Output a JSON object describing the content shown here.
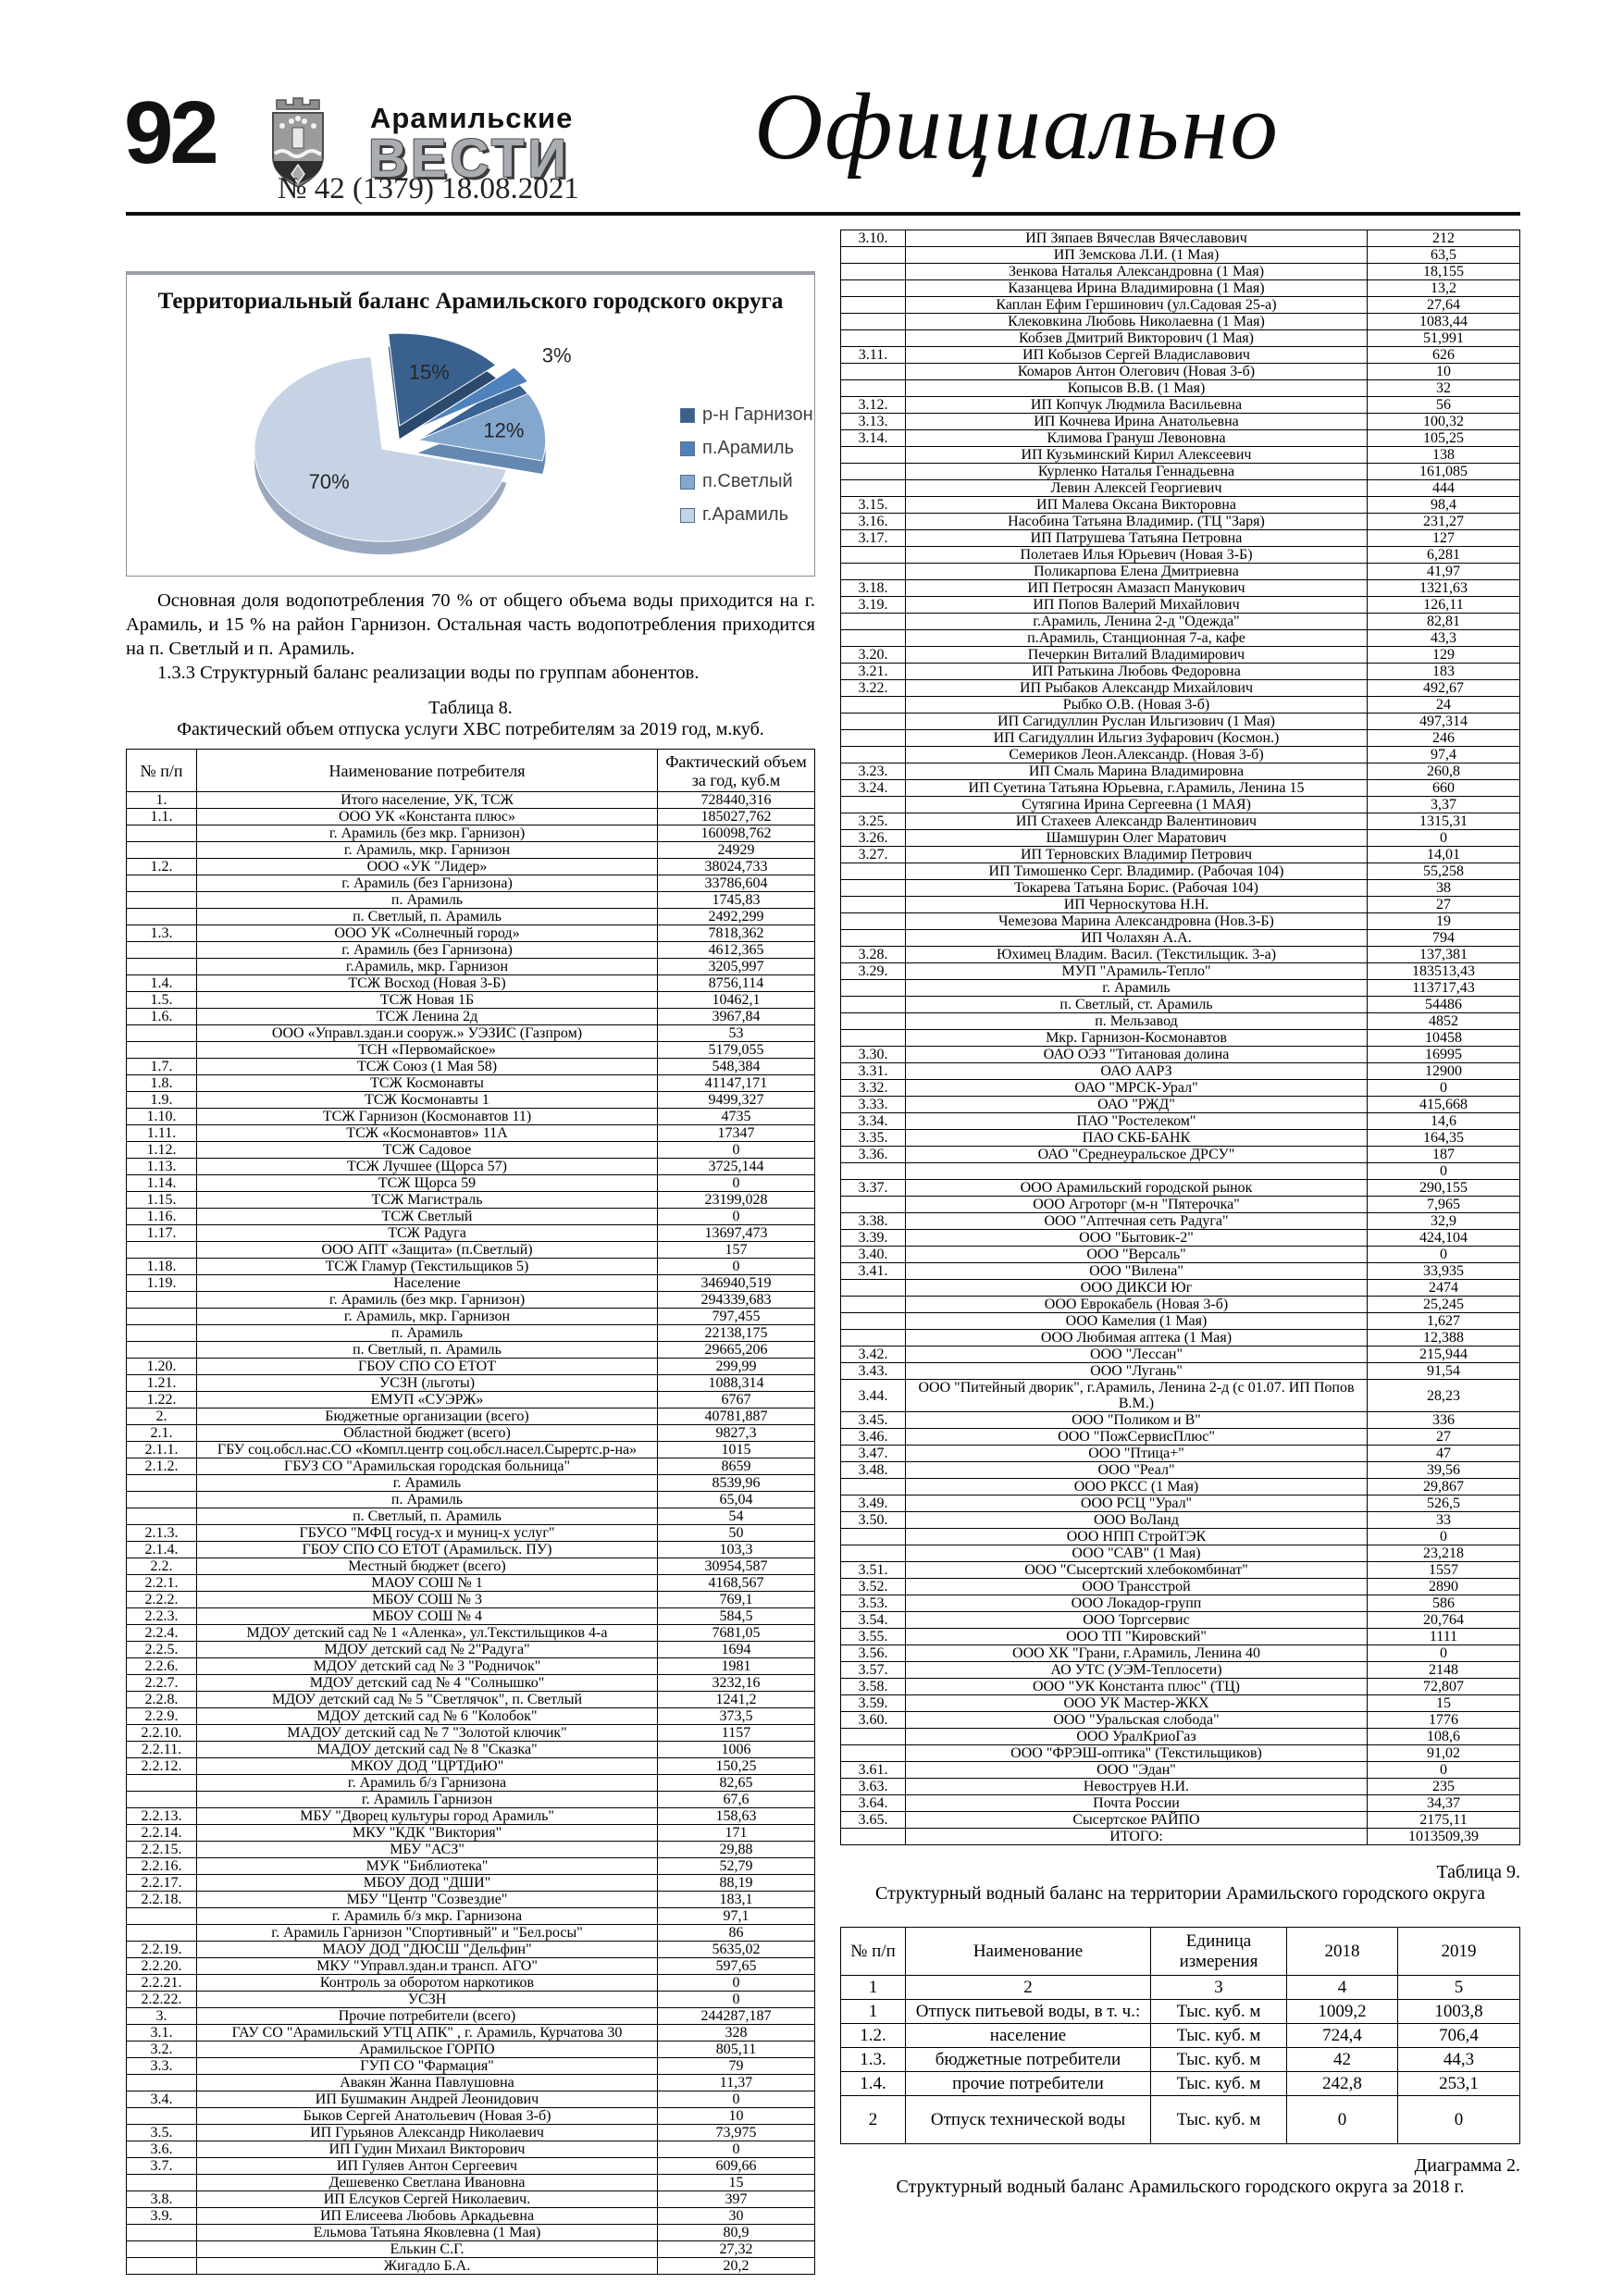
{
  "header": {
    "page_number": "92",
    "masthead_top": "Арамильские",
    "masthead_main": "ВЕСТИ",
    "issue_line": "№ 42 (1379) 18.08.2021",
    "section_title": "Официально"
  },
  "chart_data": {
    "type": "pie",
    "title": "Территориальный баланс Арамильского городского округа",
    "categories": [
      "р-н Гарнизон",
      "п.Арамиль",
      "п.Светлый",
      "г.Арамиль"
    ],
    "values": [
      15,
      3,
      12,
      70
    ],
    "unit": "%",
    "labels_pct": [
      "15%",
      "3%",
      "12%",
      "70%"
    ],
    "colors": [
      "#3a618e",
      "#4f81bd",
      "#84a7ce",
      "#c6d3e5"
    ],
    "side_colors": [
      "#2b4a6e",
      "#3a6292",
      "#6488b2",
      "#9aa9bf"
    ],
    "start_angle": -95,
    "explode": [
      26,
      36,
      30,
      12
    ],
    "label_radius": [
      0.62,
      1.34,
      0.68,
      0.55
    ],
    "legend_position": "right",
    "grid": false
  },
  "paragraph": {
    "p1": "Основная доля водопотребления 70 % от общего объема воды приходится на г. Арамиль, и 15 % на район Гарнизон. Остальная часть водопотребления приходится на п. Светлый и п. Арамиль.",
    "p2": "1.3.3 Структурный баланс реализации воды по группам абонентов."
  },
  "table8": {
    "caption_num": "Таблица 8.",
    "caption": "Фактический объем отпуска услуги ХВС потребителям за  2019 год, м.куб.",
    "columns": [
      "№ п/п",
      "Наименование потребителя",
      "Фактический объем за год, куб.м"
    ],
    "rows_left": [
      [
        "1.",
        "Итого население, УК, ТСЖ",
        "728440,316"
      ],
      [
        "1.1.",
        "ООО УК «Константа плюс»",
        "185027,762"
      ],
      [
        "",
        "г. Арамиль (без мкр. Гарнизон)",
        "160098,762"
      ],
      [
        "",
        "г. Арамиль, мкр. Гарнизон",
        "24929"
      ],
      [
        "1.2.",
        "ООО «УК \"Лидер»",
        "38024,733"
      ],
      [
        "",
        "г. Арамиль (без Гарнизона)",
        "33786,604"
      ],
      [
        "",
        "п. Арамиль",
        "1745,83"
      ],
      [
        "",
        "п. Светлый, п. Арамиль",
        "2492,299"
      ],
      [
        "1.3.",
        "ООО УК «Солнечный город»",
        "7818,362"
      ],
      [
        "",
        "г. Арамиль  (без Гарнизона)",
        "4612,365"
      ],
      [
        "",
        "г.Арамиль,  мкр. Гарнизон",
        "3205,997"
      ],
      [
        "1.4.",
        "ТСЖ Восход  (Новая 3-Б)",
        "8756,114"
      ],
      [
        "1.5.",
        "ТСЖ Новая 1Б",
        "10462,1"
      ],
      [
        "1.6.",
        "ТСЖ Ленина 2д",
        "3967,84"
      ],
      [
        "",
        "ООО «Управл.здан.и сооруж.» УЭЗИС (Газпром)",
        "53"
      ],
      [
        "",
        "ТСН «Первомайское»",
        "5179,055"
      ],
      [
        "1.7.",
        "ТСЖ Союз (1 Мая 58)",
        "548,384"
      ],
      [
        "1.8.",
        "ТСЖ Космонавты",
        "41147,171"
      ],
      [
        "1.9.",
        "ТСЖ Космонавты 1",
        "9499,327"
      ],
      [
        "1.10.",
        "ТСЖ Гарнизон (Космонавтов 11)",
        "4735"
      ],
      [
        "1.11.",
        "ТСЖ «Космонавтов» 11А",
        "17347"
      ],
      [
        "1.12.",
        "ТСЖ Садовое",
        "0"
      ],
      [
        "1.13.",
        "ТСЖ Лучшее    (Щорса 57)",
        "3725,144"
      ],
      [
        "1.14.",
        "ТСЖ Щорса 59",
        "0"
      ],
      [
        "1.15.",
        "ТСЖ Магистраль",
        "23199,028"
      ],
      [
        "1.16.",
        "ТСЖ Светлый",
        "0"
      ],
      [
        "1.17.",
        "ТСЖ Радуга",
        "13697,473"
      ],
      [
        "",
        "ООО АПТ «Защита» (п.Светлый)",
        "157"
      ],
      [
        "1.18.",
        "ТСЖ Гламур (Текстильщиков 5)",
        "0"
      ],
      [
        "1.19.",
        "Население",
        "346940,519"
      ],
      [
        "",
        "г. Арамиль (без  мкр. Гарнизон)",
        "294339,683"
      ],
      [
        "",
        "г. Арамиль, мкр. Гарнизон",
        "797,455"
      ],
      [
        "",
        "п. Арамиль",
        "22138,175"
      ],
      [
        "",
        "п. Светлый, п. Арамиль",
        "29665,206"
      ],
      [
        "1.20.",
        "ГБОУ СПО СО ЕТОТ",
        "299,99"
      ],
      [
        "1.21.",
        "УСЗН (льготы)",
        "1088,314"
      ],
      [
        "1.22.",
        "ЕМУП «СУЭРЖ»",
        "6767"
      ],
      [
        "2.",
        "Бюджетные организации (всего)",
        "40781,887"
      ],
      [
        "2.1.",
        "Областной бюджет (всего)",
        "9827,3"
      ],
      [
        "2.1.1.",
        "ГБУ соц.обсл.нас.СО «Компл.центр соц.обсл.насел.Сырертс.р-на»",
        "1015"
      ],
      [
        "2.1.2.",
        "ГБУЗ СО \"Арамильская городская больница\"",
        "8659"
      ],
      [
        "",
        "г. Арамиль",
        "8539,96"
      ],
      [
        "",
        "п. Арамиль",
        "65,04"
      ],
      [
        "",
        "п. Светлый, п. Арамиль",
        "54"
      ],
      [
        "2.1.3.",
        "ГБУСО \"МФЦ госуд-х и муниц-х услуг\"",
        "50"
      ],
      [
        "2.1.4.",
        "ГБОУ СПО СО ЕТОТ (Арамильск. ПУ)",
        "103,3"
      ],
      [
        "2.2.",
        "Местный бюджет (всего)",
        "30954,587"
      ],
      [
        "2.2.1.",
        "МАОУ СОШ № 1",
        "4168,567"
      ],
      [
        "2.2.2.",
        "МБОУ СОШ № 3",
        "769,1"
      ],
      [
        "2.2.3.",
        "МБОУ СОШ № 4",
        "584,5"
      ],
      [
        "2.2.4.",
        "МДОУ детский сад № 1 «Аленка», ул.Текстильщиков 4-а",
        "7681,05"
      ],
      [
        "2.2.5.",
        "МДОУ детский сад № 2\"Радуга\"",
        "1694"
      ],
      [
        "2.2.6.",
        "МДОУ детский сад № 3 \"Родничок\"",
        "1981"
      ],
      [
        "2.2.7.",
        "МДОУ детский сад № 4 \"Солнышко\"",
        "3232,16"
      ],
      [
        "2.2.8.",
        "МДОУ детский сад № 5 \"Светлячок\", п. Светлый",
        "1241,2"
      ],
      [
        "2.2.9.",
        "МДОУ детский сад № 6 \"Колобок\"",
        "373,5"
      ],
      [
        "2.2.10.",
        "МАДОУ детский сад № 7 \"Золотой ключик\"",
        "1157"
      ],
      [
        "2.2.11.",
        "МАДОУ детский сад № 8 \"Сказка\"",
        "1006"
      ],
      [
        "2.2.12.",
        "МКОУ ДОД \"ЦРТДиЮ\"",
        "150,25"
      ],
      [
        "",
        "г. Арамиль б/з Гарнизона",
        "82,65"
      ],
      [
        "",
        "г. Арамиль Гарнизон",
        "67,6"
      ],
      [
        "2.2.13.",
        "МБУ \"Дворец культуры город Арамиль\"",
        "158,63"
      ],
      [
        "2.2.14.",
        "МКУ \"КДК \"Виктория\"",
        "171"
      ],
      [
        "2.2.15.",
        "МБУ \"АСЗ\"",
        "29,88"
      ],
      [
        "2.2.16.",
        "МУК \"Библиотека\"",
        "52,79"
      ],
      [
        "2.2.17.",
        "МБОУ ДОД \"ДШИ\"",
        "88,19"
      ],
      [
        "2.2.18.",
        "МБУ \"Центр \"Созвездие\"",
        "183,1"
      ],
      [
        "",
        "г. Арамиль б/з  мкр. Гарнизона",
        "97,1"
      ],
      [
        "",
        "г. Арамиль Гарнизон \"Спортивный\" и \"Бел.росы\"",
        "86"
      ],
      [
        "2.2.19.",
        "МАОУ ДОД \"ДЮСШ \"Дельфин\"",
        "5635,02"
      ],
      [
        "2.2.20.",
        "МКУ \"Управл.здан.и трансп. АГО\"",
        "597,65"
      ],
      [
        "2.2.21.",
        "Контроль за оборотом наркотиков",
        "0"
      ],
      [
        "2.2.22.",
        "УСЗН",
        "0"
      ],
      [
        "3.",
        "Прочие потребители (всего)",
        "244287,187"
      ],
      [
        "3.1.",
        "ГАУ СО \"Арамильский УТЦ АПК\" , г. Арамиль, Курчатова 30",
        "328"
      ],
      [
        "3.2.",
        "Арамильское ГОРПО",
        "805,11"
      ],
      [
        "3.3.",
        "ГУП СО \"Фармация\"",
        "79"
      ],
      [
        "",
        "Авакян Жанна Павлушовна",
        "11,37"
      ],
      [
        "3.4.",
        "ИП Бушмакин Андрей Леонидович",
        "0"
      ],
      [
        "",
        "Быков Сергей Анатольевич (Новая 3-б)",
        "10"
      ],
      [
        "3.5.",
        "ИП Гурьянов Александр Николаевич",
        "73,975"
      ],
      [
        "3.6.",
        "ИП Гудин Михаил Викторович",
        "0"
      ],
      [
        "3.7.",
        "ИП Гуляев Антон Сергеевич",
        "609,66"
      ],
      [
        "",
        "Дешевенко Светлана Ивановна",
        "15"
      ],
      [
        "3.8.",
        "ИП Елсуков Сергей Николаевич.",
        "397"
      ],
      [
        "3.9.",
        "ИП Елисеева Любовь Аркадьевна",
        "30"
      ],
      [
        "",
        "Ельмова Татьяна Яковлевна (1 Мая)",
        "80,9"
      ],
      [
        "",
        "Елькин С.Г.",
        "27,32"
      ],
      [
        "",
        "Жигадло Б.А.",
        "20,2"
      ]
    ],
    "rows_right": [
      [
        "3.10.",
        "ИП Зяпаев Вячеслав Вячеславович",
        "212"
      ],
      [
        "",
        "ИП Земскова Л.И. (1 Мая)",
        "63,5"
      ],
      [
        "",
        "Зенкова Наталья Александровна (1 Мая)",
        "18,155"
      ],
      [
        "",
        "Казанцева Ирина Владимировна  (1 Мая)",
        "13,2"
      ],
      [
        "",
        "Каплан Ефим Гершинович  (ул.Садовая 25-а)",
        "27,64"
      ],
      [
        "",
        "Клековкина Любовь Николаевна (1 Мая)",
        "1083,44"
      ],
      [
        "",
        "Кобзев Дмитрий Викторович   (1 Мая)",
        "51,991"
      ],
      [
        "3.11.",
        "ИП Кобызов Сергей Владиславович",
        "626"
      ],
      [
        "",
        "Комаров Антон Олегович (Новая 3-б)",
        "10"
      ],
      [
        "",
        "Копысов В.В.  (1 Мая)",
        "32"
      ],
      [
        "3.12.",
        "ИП Копчук Людмила Васильевна",
        "56"
      ],
      [
        "3.13.",
        "ИП Кочнева Ирина Анатольевна",
        "100,32"
      ],
      [
        "3.14.",
        "Климова Грануш Левоновна",
        "105,25"
      ],
      [
        "",
        "ИП Кузьминский Кирил Алексеевич",
        "138"
      ],
      [
        "",
        "Курленко Наталья Геннадьевна",
        "161,085"
      ],
      [
        "",
        "Левин Алексей Георгиевич",
        "444"
      ],
      [
        "3.15.",
        "ИП Малева Оксана Викторовна",
        "98,4"
      ],
      [
        "3.16.",
        "Насобина Татьяна Владимир. (ТЦ \"Заря)",
        "231,27"
      ],
      [
        "3.17.",
        "ИП Патрушева Татьяна Петровна",
        "127"
      ],
      [
        "",
        "Полетаев Илья Юрьевич (Новая 3-Б)",
        "6,281"
      ],
      [
        "",
        "Поликарпова Елена Дмитриевна",
        "41,97"
      ],
      [
        "3.18.",
        "ИП Петросян Амазасп Манукович",
        "1321,63"
      ],
      [
        "3.19.",
        "ИП Попов Валерий Михайлович",
        "126,11"
      ],
      [
        "",
        "г.Арамиль, Ленина 2-д \"Одежда\"",
        "82,81"
      ],
      [
        "",
        "п.Арамиль, Станционная 7-а, кафе",
        "43,3"
      ],
      [
        "3.20.",
        "Печеркин Виталий Владимирович",
        "129"
      ],
      [
        "3.21.",
        "ИП Ратькина Любовь Федоровна",
        "183"
      ],
      [
        "3.22.",
        "ИП Рыбаков Александр Михайлович",
        "492,67"
      ],
      [
        "",
        "Рыбко О.В.    (Новая 3-б)",
        "24"
      ],
      [
        "",
        "ИП Сагидуллин Руслан Ильгизович (1 Мая)",
        "497,314"
      ],
      [
        "",
        "ИП Сагидуллин Ильгиз Зуфарович (Космон.)",
        "246"
      ],
      [
        "",
        "Семериков Леон.Александр. (Новая 3-б)",
        "97,4"
      ],
      [
        "3.23.",
        "ИП Смаль Марина Владимировна",
        "260,8"
      ],
      [
        "3.24.",
        "ИП Суетина Татьяна Юрьевна, г.Арамиль, Ленина 15",
        "660"
      ],
      [
        "",
        "Сутягина Ирина Сергеевна (1 МАЯ)",
        "3,37"
      ],
      [
        "3.25.",
        "ИП Стахеев Александр Валентинович",
        "1315,31"
      ],
      [
        "3.26.",
        "Шамшурин Олег Маратович",
        "0"
      ],
      [
        "3.27.",
        "ИП Терновских Владимир Петрович",
        "14,01"
      ],
      [
        "",
        "ИП Тимошенко Серг. Владимир. (Рабочая 104)",
        "55,258"
      ],
      [
        "",
        "Токарева Татьяна Борис. (Рабочая 104)",
        "38"
      ],
      [
        "",
        "ИП Черноскутова Н.Н.",
        "27"
      ],
      [
        "",
        "Чемезова Марина Александровна (Нов.3-Б)",
        "19"
      ],
      [
        "",
        "ИП Чолахян А.А.",
        "794"
      ],
      [
        "3.28.",
        "Юхимец Владим. Васил.  (Текстильщик. 3-а)",
        "137,381"
      ],
      [
        "3.29.",
        "МУП \"Арамиль-Тепло\"",
        "183513,43"
      ],
      [
        "",
        "г. Арамиль",
        "113717,43"
      ],
      [
        "",
        "п. Светлый, ст. Арамиль",
        "54486"
      ],
      [
        "",
        "п. Мельзавод",
        "4852"
      ],
      [
        "",
        "Мкр. Гарнизон-Космонавтов",
        "10458"
      ],
      [
        "3.30.",
        "ОАО ОЭЗ \"Титановая долина",
        "16995"
      ],
      [
        "3.31.",
        "ОАО ААРЗ",
        "12900"
      ],
      [
        "3.32.",
        "ОАО \"МРСК-Урал\"",
        "0"
      ],
      [
        "3.33.",
        "ОАО \"РЖД\"",
        "415,668"
      ],
      [
        "3.34.",
        "ПАО \"Ростелеком\"",
        "14,6"
      ],
      [
        "3.35.",
        "ПАО СКБ-БАНК",
        "164,35"
      ],
      [
        "3.36.",
        "ОАО \"Среднеуральское ДРСУ\"",
        "187"
      ],
      [
        "",
        "",
        "0"
      ],
      [
        "3.37.",
        "ООО Арамильский городской рынок",
        "290,155"
      ],
      [
        "",
        "ООО Агроторг (м-н  \"Пятерочка\"",
        "7,965"
      ],
      [
        "3.38.",
        "ООО \"Аптечная сеть Радуга\"",
        "32,9"
      ],
      [
        "3.39.",
        "ООО \"Бытовик-2\"",
        "424,104"
      ],
      [
        "3.40.",
        "ООО \"Версаль\"",
        "0"
      ],
      [
        "3.41.",
        "ООО \"Вилена\"",
        "33,935"
      ],
      [
        "",
        "ООО ДИКСИ Юг",
        "2474"
      ],
      [
        "",
        "ООО Еврокабель (Новая 3-б)",
        "25,245"
      ],
      [
        "",
        "ООО Камелия  (1 Мая)",
        "1,627"
      ],
      [
        "",
        "ООО Любимая аптека (1 Мая)",
        "12,388"
      ],
      [
        "3.42.",
        "ООО \"Лессан\"",
        "215,944"
      ],
      [
        "3.43.",
        "ООО \"Лугань\"",
        "91,54"
      ],
      [
        "3.44.",
        "ООО \"Питейный дворик\", г.Арамиль, Ленина 2-д (с 01.07. ИП Попов В.М.)",
        "28,23"
      ],
      [
        "3.45.",
        "ООО \"Поликом и В\"",
        "336"
      ],
      [
        "3.46.",
        "ООО \"ПожСервисПлюс\"",
        "27"
      ],
      [
        "3.47.",
        "ООО \"Птица+\"",
        "47"
      ],
      [
        "3.48.",
        "ООО \"Реал\"",
        "39,56"
      ],
      [
        "",
        "ООО РКСС  (1 Мая)",
        "29,867"
      ],
      [
        "3.49.",
        "ООО РСЦ \"Урал\"",
        "526,5"
      ],
      [
        "3.50.",
        "ООО ВоЛанд",
        "33"
      ],
      [
        "",
        "ООО НПП СтройТЭК",
        "0"
      ],
      [
        "",
        "ООО \"САВ\"  (1 Мая)",
        "23,218"
      ],
      [
        "3.51.",
        "ООО \"Сысертский хлебокомбинат\"",
        "1557"
      ],
      [
        "3.52.",
        "ООО Трансстрой",
        "2890"
      ],
      [
        "3.53.",
        "ООО Локадор-групп",
        "586"
      ],
      [
        "3.54.",
        "ООО Торгсервис",
        "20,764"
      ],
      [
        "3.55.",
        "ООО ТП \"Кировский\"",
        "1111"
      ],
      [
        "3.56.",
        "ООО ХК \"Грани, г.Арамиль, Ленина 40",
        "0"
      ],
      [
        "3.57.",
        "АО УТС   (УЭМ-Теплосети)",
        "2148"
      ],
      [
        "3.58.",
        "ООО \"УК Константа плюс\" (ТЦ)",
        "72,807"
      ],
      [
        "3.59.",
        "ООО УК Мастер-ЖКХ",
        "15"
      ],
      [
        "3.60.",
        "ООО \"Уральская слобода\"",
        "1776"
      ],
      [
        "",
        "ООО УралКриоГаз",
        "108,6"
      ],
      [
        "",
        "ООО \"ФРЭШ-оптика\"  (Текстильщиков)",
        "91,02"
      ],
      [
        "3.61.",
        "ООО \"Эдан\"",
        "0"
      ],
      [
        "3.63.",
        "Невоструев Н.И.",
        "235"
      ],
      [
        "3.64.",
        "Почта России",
        "34,37"
      ],
      [
        "3.65.",
        "Сысертское РАЙПО",
        "2175,11"
      ],
      [
        "",
        "ИТОГО:",
        "1013509,39"
      ]
    ]
  },
  "table9": {
    "caption_num": "Таблица 9.",
    "caption": "Структурный водный баланс на территории Арамильского городского округа",
    "columns": [
      "№ п/п",
      "Наименование",
      "Единица измерения",
      "2018",
      "2019"
    ],
    "index_row": [
      "1",
      "2",
      "3",
      "4",
      "5"
    ],
    "rows": [
      [
        "1",
        "Отпуск питьевой воды, в т. ч.:",
        "Тыс. куб. м",
        "1009,2",
        "1003,8"
      ],
      [
        "1.2.",
        "население",
        "Тыс. куб. м",
        "724,4",
        "706,4"
      ],
      [
        "1.3.",
        "бюджетные потребители",
        "Тыс. куб. м",
        "42",
        "44,3"
      ],
      [
        "1.4.",
        "прочие потребители",
        "Тыс. куб. м",
        "242,8",
        "253,1"
      ],
      [
        "2",
        "Отпуск технической воды",
        "Тыс. куб. м",
        "0",
        "0"
      ]
    ]
  },
  "diagram2": {
    "label": "Диаграмма 2.",
    "caption": "Структурный водный баланс Арамильского городского округа за 2018 г."
  }
}
